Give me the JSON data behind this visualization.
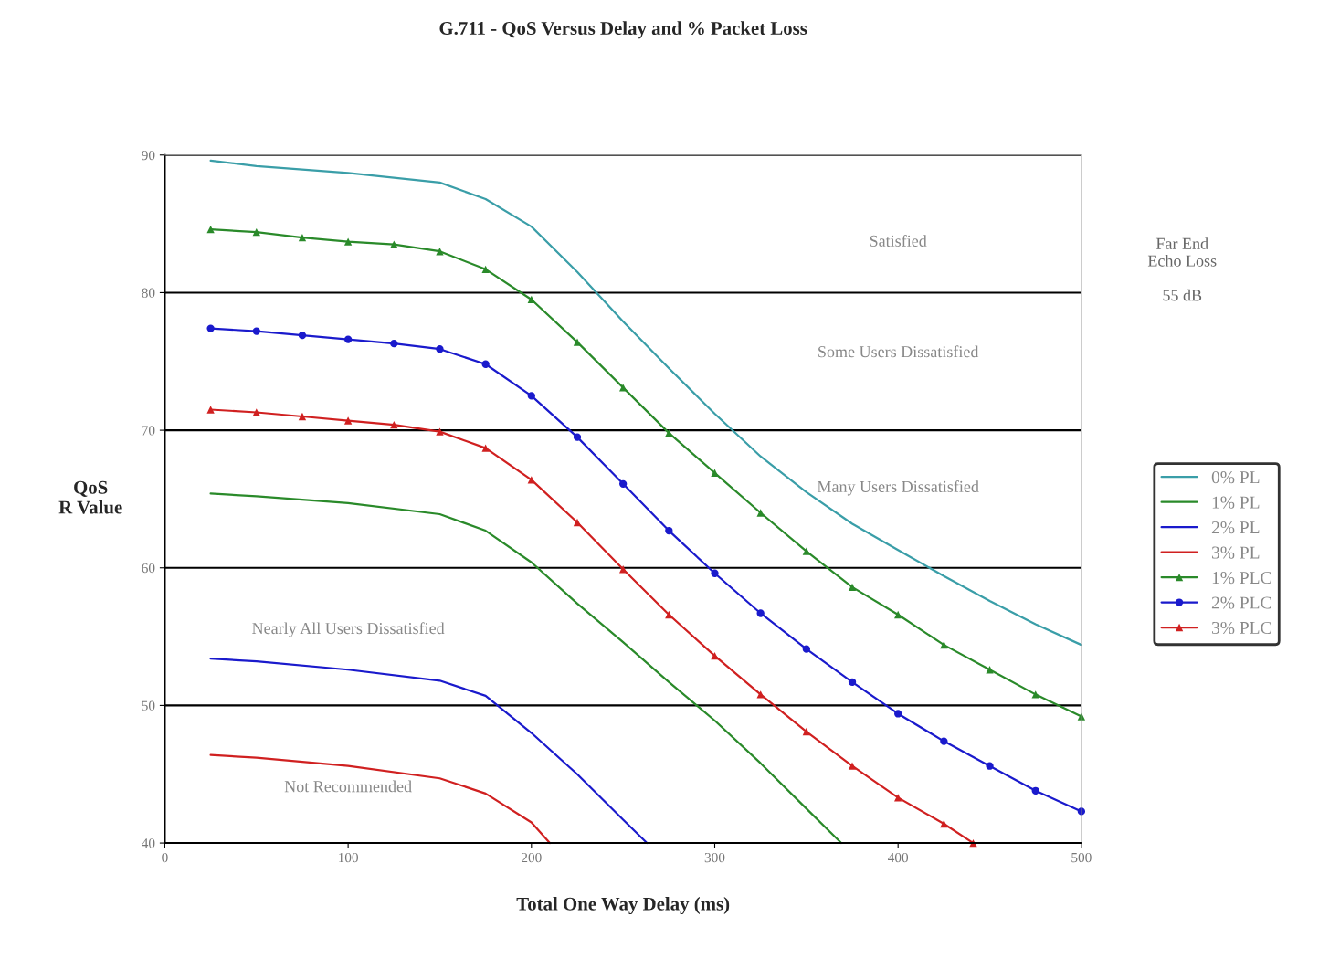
{
  "chart_data": {
    "type": "line",
    "title": "G.711 - QoS Versus Delay and % Packet Loss",
    "xlabel": "Total One Way Delay (ms)",
    "ylabel": "QoS\nR Value",
    "xlim": [
      0,
      500
    ],
    "xticks": [
      0,
      100,
      200,
      300,
      400,
      500
    ],
    "ylim": [
      40,
      90
    ],
    "yticks": [
      40,
      50,
      60,
      70,
      80,
      90
    ],
    "grid": "y",
    "legend": "right",
    "series": [
      {
        "name": "0% PL",
        "color": "#3a9ea8",
        "marker": "none",
        "x": [
          25,
          50,
          100,
          150,
          175,
          200,
          225,
          250,
          275,
          300,
          325,
          350,
          375,
          400,
          425,
          450,
          475,
          500
        ],
        "values": [
          89.6,
          89.2,
          88.7,
          88.0,
          86.8,
          84.8,
          81.5,
          77.9,
          74.5,
          71.2,
          68.1,
          65.5,
          63.2,
          61.3,
          59.4,
          57.6,
          55.9,
          54.4
        ]
      },
      {
        "name": "1% PL",
        "color": "#2a8a2a",
        "marker": "none",
        "x": [
          25,
          50,
          100,
          150,
          175,
          200,
          225,
          250,
          275,
          300,
          325,
          350,
          369
        ],
        "values": [
          65.4,
          65.2,
          64.7,
          63.9,
          62.7,
          60.4,
          57.4,
          54.6,
          51.7,
          48.9,
          45.8,
          42.5,
          40
        ]
      },
      {
        "name": "2% PL",
        "color": "#1a1acc",
        "marker": "none",
        "x": [
          25,
          50,
          100,
          150,
          175,
          200,
          225,
          250,
          263
        ],
        "values": [
          53.4,
          53.2,
          52.6,
          51.8,
          50.7,
          48.0,
          45.0,
          41.7,
          40
        ]
      },
      {
        "name": "3% PL",
        "color": "#d02020",
        "marker": "none",
        "x": [
          25,
          50,
          100,
          150,
          175,
          200,
          210
        ],
        "values": [
          46.4,
          46.2,
          45.6,
          44.7,
          43.6,
          41.5,
          40
        ]
      },
      {
        "name": "1% PLC",
        "color": "#2a8a2a",
        "marker": "triangle",
        "x": [
          25,
          50,
          75,
          100,
          125,
          150,
          175,
          200,
          225,
          250,
          275,
          300,
          325,
          350,
          375,
          400,
          425,
          450,
          475,
          500
        ],
        "values": [
          84.6,
          84.4,
          84.0,
          83.7,
          83.5,
          83.0,
          81.7,
          79.5,
          76.4,
          73.1,
          69.8,
          66.9,
          64.0,
          61.2,
          58.6,
          56.6,
          54.4,
          52.6,
          50.8,
          49.2
        ]
      },
      {
        "name": "2% PLC",
        "color": "#1a1acc",
        "marker": "circle",
        "x": [
          25,
          50,
          75,
          100,
          125,
          150,
          175,
          200,
          225,
          250,
          275,
          300,
          325,
          350,
          375,
          400,
          425,
          450,
          475,
          500
        ],
        "values": [
          77.4,
          77.2,
          76.9,
          76.6,
          76.3,
          75.9,
          74.8,
          72.5,
          69.5,
          66.1,
          62.7,
          59.6,
          56.7,
          54.1,
          51.7,
          49.4,
          47.4,
          45.6,
          43.8,
          42.3
        ]
      },
      {
        "name": "3% PLC",
        "color": "#d02020",
        "marker": "triangle",
        "x": [
          25,
          50,
          75,
          100,
          125,
          150,
          175,
          200,
          225,
          250,
          275,
          300,
          325,
          350,
          375,
          400,
          425,
          441
        ],
        "values": [
          71.5,
          71.3,
          71.0,
          70.7,
          70.4,
          69.9,
          68.7,
          66.4,
          63.3,
          59.9,
          56.6,
          53.6,
          50.8,
          48.1,
          45.6,
          43.3,
          41.4,
          40
        ]
      }
    ],
    "annotations": [
      "Satisfied",
      "Some Users Dissatisfied",
      "Many Users Dissatisfied",
      "Nearly All Users Dissatisfied",
      "Not Recommended",
      "Far End\nEcho Loss\n\n55 dB"
    ]
  }
}
